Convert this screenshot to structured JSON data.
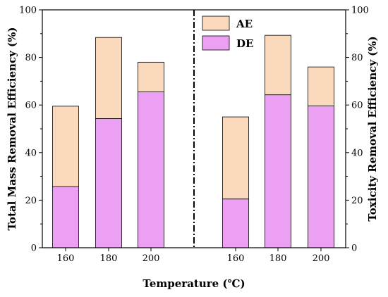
{
  "chart_data": {
    "type": "bar",
    "stacked": true,
    "xlabel": "Temperature (℃)",
    "ylabel_left": "Total Mass Removal Efficiency (%)",
    "ylabel_right": "Toxicity Removal Efficiency (%)",
    "ylim": [
      0,
      100
    ],
    "yticks": [
      "0",
      "20",
      "40",
      "60",
      "80",
      "100"
    ],
    "grid": false,
    "legend_position": "top-center",
    "colors": {
      "AE": "#fbd9bd",
      "DE": "#eca0f3",
      "divider": "#000000"
    },
    "groups": [
      {
        "axis": "left",
        "categories": [
          "160",
          "180",
          "200"
        ],
        "series": [
          {
            "name": "DE",
            "values": [
              25.7,
              54.3,
              65.5
            ]
          },
          {
            "name": "AE",
            "values": [
              33.8,
              34.1,
              12.5
            ]
          }
        ]
      },
      {
        "axis": "right",
        "categories": [
          "160",
          "180",
          "200"
        ],
        "series": [
          {
            "name": "DE",
            "values": [
              20.5,
              64.3,
              59.6
            ]
          },
          {
            "name": "AE",
            "values": [
              34.5,
              25.0,
              16.4
            ]
          }
        ]
      }
    ],
    "legend": [
      {
        "name": "AE",
        "color": "#fbd9bd"
      },
      {
        "name": "DE",
        "color": "#eca0f3"
      }
    ]
  }
}
